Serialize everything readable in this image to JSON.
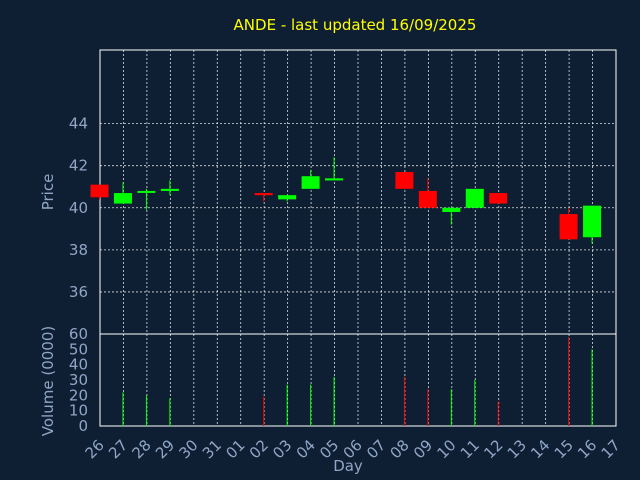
{
  "chart_data": {
    "type": "candlestick",
    "title": "ANDE - last updated 16/09/2025",
    "xlabel": "Day",
    "price_ylabel": "Price",
    "volume_ylabel": "Volume (0000)",
    "x_ticks": [
      "26",
      "27",
      "28",
      "29",
      "30",
      "31",
      "01",
      "02",
      "03",
      "04",
      "05",
      "06",
      "07",
      "08",
      "09",
      "10",
      "11",
      "12",
      "13",
      "14",
      "15",
      "16",
      "17"
    ],
    "price_yticks": [
      36,
      38,
      40,
      42,
      44
    ],
    "price_ylim": [
      34.0,
      47.5
    ],
    "volume_yticks": [
      0,
      10,
      20,
      30,
      40,
      50,
      60
    ],
    "volume_ylim": [
      0,
      60
    ],
    "grid": true,
    "up_color": "#00ff00",
    "down_color": "#ff0000",
    "candles": [
      {
        "day": "26",
        "open": 41.1,
        "high": 41.1,
        "low": 40.4,
        "close": 40.5,
        "volume": 0
      },
      {
        "day": "27",
        "open": 40.2,
        "high": 41.2,
        "low": 40.2,
        "close": 40.7,
        "volume": 22
      },
      {
        "day": "28",
        "open": 40.8,
        "high": 40.9,
        "low": 39.9,
        "close": 40.8,
        "volume": 20
      },
      {
        "day": "29",
        "open": 40.8,
        "high": 41.3,
        "low": 40.6,
        "close": 40.9,
        "volume": 18
      },
      {
        "day": "02",
        "open": 40.7,
        "high": 40.7,
        "low": 40.3,
        "close": 40.6,
        "volume": 19
      },
      {
        "day": "03",
        "open": 40.4,
        "high": 40.6,
        "low": 40.3,
        "close": 40.6,
        "volume": 27
      },
      {
        "day": "04",
        "open": 40.9,
        "high": 41.8,
        "low": 40.9,
        "close": 41.5,
        "volume": 27
      },
      {
        "day": "05",
        "open": 41.3,
        "high": 42.4,
        "low": 41.3,
        "close": 41.4,
        "volume": 32
      },
      {
        "day": "08",
        "open": 41.7,
        "high": 41.7,
        "low": 40.9,
        "close": 40.9,
        "volume": 32
      },
      {
        "day": "09",
        "open": 40.8,
        "high": 41.4,
        "low": 40.0,
        "close": 40.0,
        "volume": 24
      },
      {
        "day": "10",
        "open": 39.8,
        "high": 40.0,
        "low": 39.2,
        "close": 40.0,
        "volume": 24
      },
      {
        "day": "11",
        "open": 40.0,
        "high": 40.9,
        "low": 40.0,
        "close": 40.9,
        "volume": 30
      },
      {
        "day": "12",
        "open": 40.7,
        "high": 40.7,
        "low": 40.2,
        "close": 40.2,
        "volume": 16
      },
      {
        "day": "15",
        "open": 39.7,
        "high": 40.0,
        "low": 38.5,
        "close": 38.5,
        "volume": 58
      },
      {
        "day": "16",
        "open": 38.6,
        "high": 40.1,
        "low": 38.3,
        "close": 40.1,
        "volume": 50
      }
    ]
  }
}
